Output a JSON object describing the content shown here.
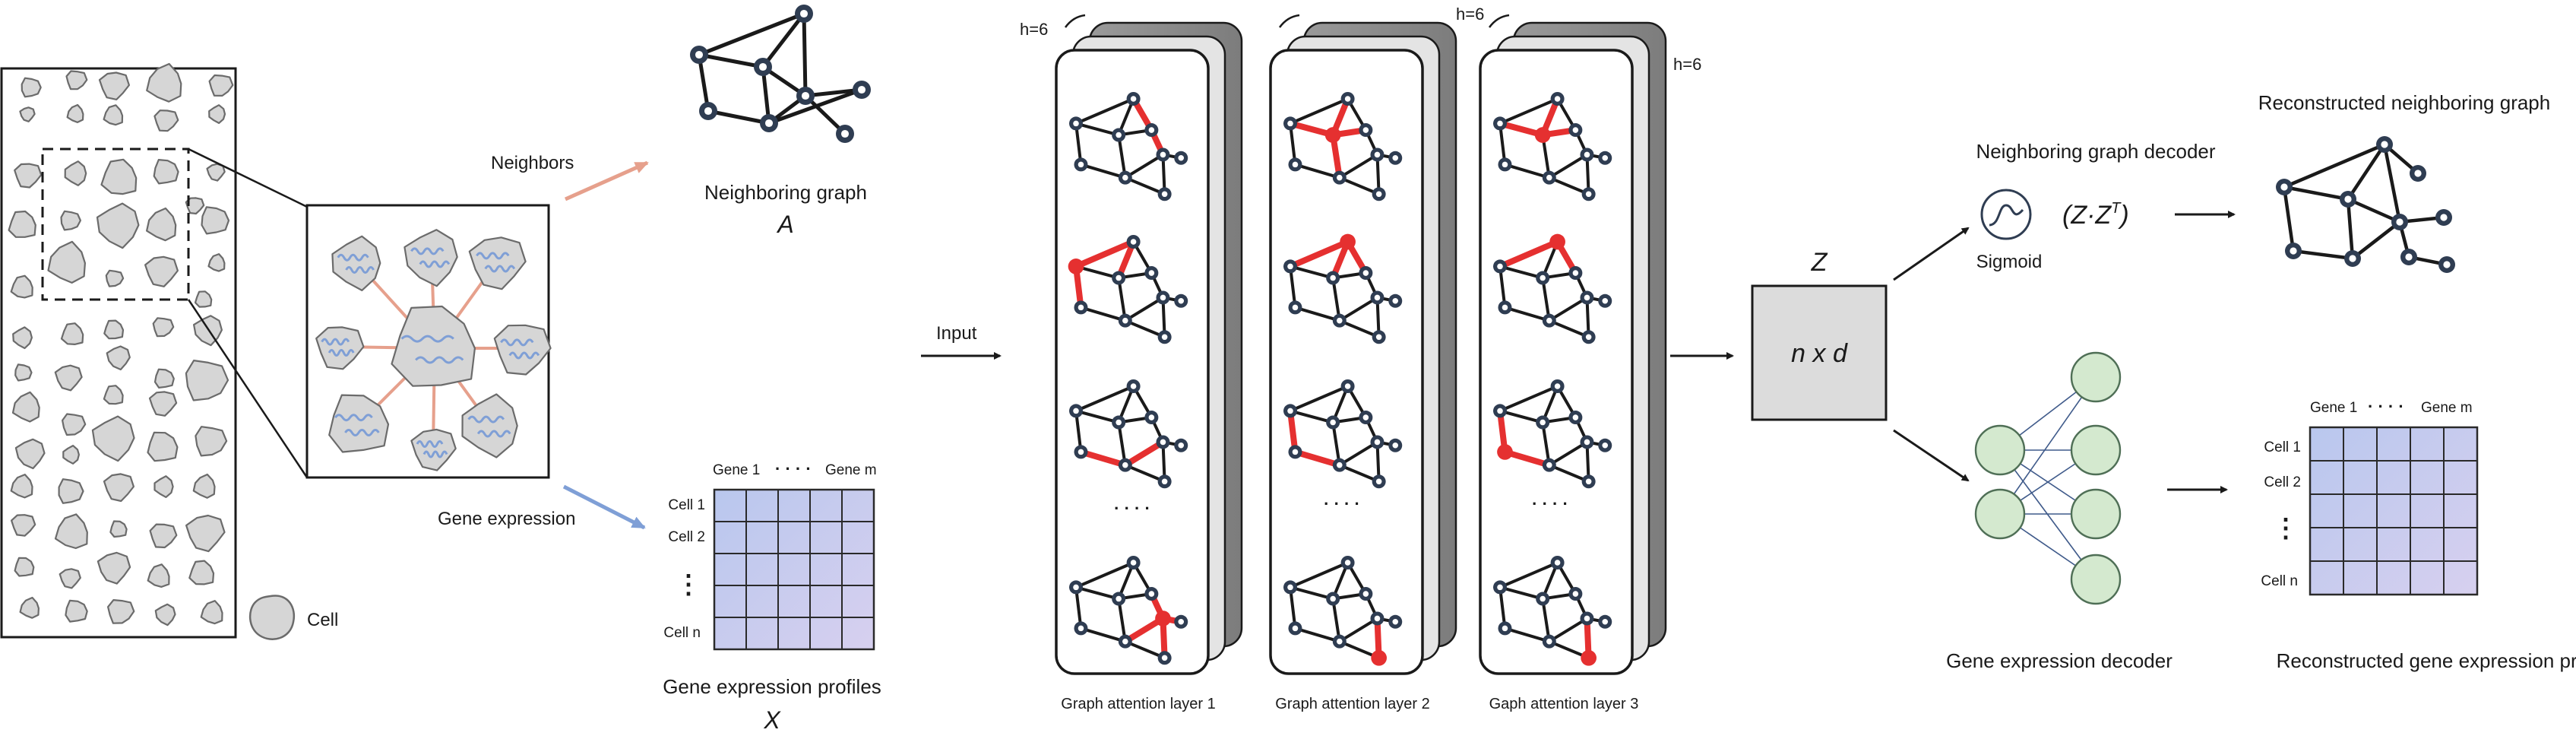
{
  "inputs": {
    "neighbors_label": "Neighbors",
    "gene_expression_label": "Gene expression",
    "cell_legend": "Cell",
    "input_label": "Input"
  },
  "neighboring_graph": {
    "title": "Neighboring graph",
    "symbol": "A"
  },
  "expression_profiles": {
    "title": "Gene expression profiles",
    "symbol": "X",
    "col_first": "Gene 1",
    "col_dots": "· · · ·",
    "col_last": "Gene m",
    "rows": [
      "Cell 1",
      "Cell 2",
      "Cell n"
    ],
    "row_dots": "⋮"
  },
  "attention": {
    "heads_label": "h=6",
    "dots": "· · · ·",
    "layers": [
      "Graph attention layer 1",
      "Graph attention layer 2",
      "Gaph attention layer 3"
    ]
  },
  "latent": {
    "symbol": "Z",
    "dims": "n x d"
  },
  "graph_decoder": {
    "title": "Neighboring graph decoder",
    "activation": "Sigmoid",
    "formula_main": "(Z·Z",
    "formula_sup": "T",
    "formula_close": ")",
    "output_title": "Reconstructed neighboring graph"
  },
  "expression_decoder": {
    "title": "Gene expression decoder",
    "output_title": "Reconstructed gene expression profiles",
    "col_first": "Gene 1",
    "col_dots": "· · · ·",
    "col_last": "Gene m",
    "rows": [
      "Cell 1",
      "Cell 2",
      "Cell n"
    ],
    "row_dots": "⋮"
  },
  "colors": {
    "node_fill": "#2f3d52",
    "edge": "#1a1a1a",
    "attention_edge": "#e53030",
    "cell_fill": "#d6d6d6",
    "matrix_fill": "#cfd3ee",
    "decoder_node": "#d4e9cf",
    "arrow_neighbors": "#e6a08c",
    "arrow_expression": "#7f9fd6"
  }
}
